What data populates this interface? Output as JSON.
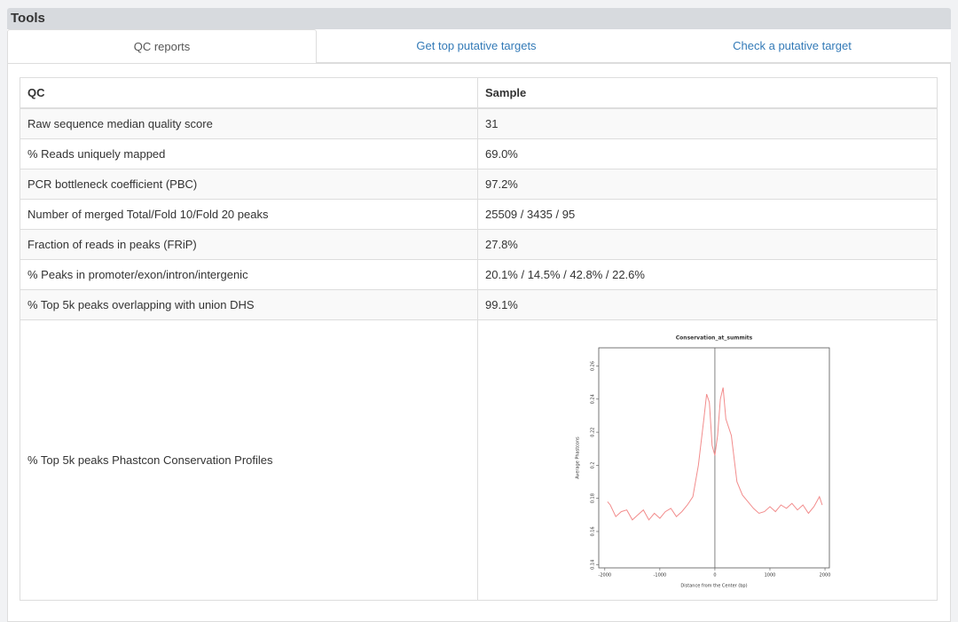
{
  "header": {
    "title": "Tools"
  },
  "tabs": [
    "QC reports",
    "Get top putative targets",
    "Check a putative target"
  ],
  "table": {
    "columns": [
      "QC",
      "Sample"
    ],
    "rows": [
      [
        "Raw sequence median quality score",
        "31"
      ],
      [
        "% Reads uniquely mapped",
        "69.0%"
      ],
      [
        "PCR bottleneck coefficient (PBC)",
        "97.2%"
      ],
      [
        "Number of merged Total/Fold 10/Fold 20 peaks",
        "25509 / 3435 / 95"
      ],
      [
        "Fraction of reads in peaks (FRiP)",
        "27.8%"
      ],
      [
        "% Peaks in promoter/exon/intron/intergenic",
        "20.1% / 14.5% / 42.8% / 22.6%"
      ],
      [
        "% Top 5k peaks overlapping with union DHS",
        "99.1%"
      ],
      [
        "% Top 5k peaks Phastcon Conservation Profiles"
      ]
    ]
  },
  "chart_data": {
    "type": "line",
    "title": "Conservation_at_summits",
    "x_label": "Distance from the Center (bp)",
    "y_label": "Average Phastcons",
    "x": [
      -1950,
      -1900,
      -1800,
      -1700,
      -1600,
      -1500,
      -1400,
      -1300,
      -1200,
      -1100,
      -1000,
      -900,
      -800,
      -700,
      -600,
      -500,
      -400,
      -300,
      -200,
      -150,
      -100,
      -50,
      0,
      50,
      100,
      150,
      200,
      300,
      400,
      500,
      600,
      700,
      800,
      900,
      1000,
      1100,
      1200,
      1300,
      1400,
      1500,
      1600,
      1700,
      1800,
      1900,
      1950
    ],
    "values": [
      0.178,
      0.176,
      0.169,
      0.172,
      0.173,
      0.167,
      0.17,
      0.173,
      0.167,
      0.171,
      0.168,
      0.172,
      0.174,
      0.169,
      0.172,
      0.176,
      0.181,
      0.2,
      0.228,
      0.243,
      0.238,
      0.212,
      0.206,
      0.218,
      0.24,
      0.247,
      0.228,
      0.218,
      0.19,
      0.182,
      0.178,
      0.174,
      0.171,
      0.172,
      0.175,
      0.172,
      0.176,
      0.174,
      0.177,
      0.173,
      0.176,
      0.171,
      0.175,
      0.181,
      0.176
    ],
    "color": "#f28c8c",
    "xlim": [
      -2110,
      2080
    ],
    "ylim": [
      0.138,
      0.271
    ],
    "xticks": [
      -2000,
      -1000,
      0,
      1000,
      2000
    ],
    "yticks": [
      0.14,
      0.16,
      0.18,
      0.2,
      0.22,
      0.24,
      0.26
    ]
  }
}
